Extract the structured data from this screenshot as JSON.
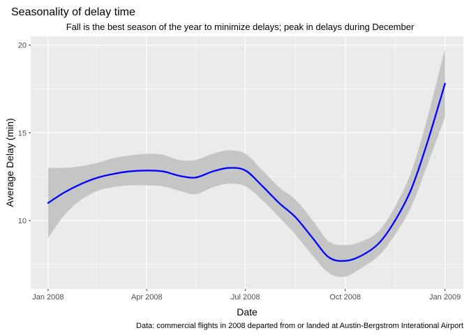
{
  "chart_data": {
    "type": "line",
    "title": "Seasonality of delay time",
    "subtitle": "Fall is the best season of the year to minimize delays; peak in delays during December",
    "caption": "Data: commercial flights in 2008 departed from or landed at Austin-Bergstrom Interational Airport",
    "xlabel": "Date",
    "ylabel": "Average Delay (min)",
    "x_ticks": [
      {
        "date": "2008-01-01",
        "label": "Jan 2008"
      },
      {
        "date": "2008-04-01",
        "label": "Apr 2008"
      },
      {
        "date": "2008-07-01",
        "label": "Jul 2008"
      },
      {
        "date": "2008-10-01",
        "label": "Oct 2008"
      },
      {
        "date": "2009-01-01",
        "label": "Jan 2009"
      }
    ],
    "x_minor_ticks": [
      "2008-02-15",
      "2008-05-16",
      "2008-08-16",
      "2008-11-16"
    ],
    "y_ticks": [
      10,
      15,
      20
    ],
    "xlim": [
      "2007-12-16",
      "2009-01-18"
    ],
    "ylim": [
      6.1,
      20.5
    ],
    "grid": true,
    "colors": {
      "line": "#0000ff",
      "ribbon": "#bebebe",
      "panel": "#ebebeb",
      "grid": "#ffffff"
    },
    "series": [
      {
        "x": [
          "2008-01-01",
          "2008-01-16",
          "2008-02-01",
          "2008-02-16",
          "2008-03-01",
          "2008-03-16",
          "2008-04-01",
          "2008-04-16",
          "2008-05-01",
          "2008-05-16",
          "2008-06-01",
          "2008-06-16",
          "2008-07-01",
          "2008-07-16",
          "2008-08-01",
          "2008-08-16",
          "2008-09-01",
          "2008-09-16",
          "2008-10-01",
          "2008-10-16",
          "2008-11-01",
          "2008-11-16",
          "2008-12-01",
          "2008-12-16",
          "2009-01-01"
        ],
        "y": [
          11.0,
          11.6,
          12.1,
          12.45,
          12.65,
          12.8,
          12.85,
          12.8,
          12.55,
          12.45,
          12.8,
          13.0,
          12.85,
          12.0,
          11.0,
          10.2,
          9.0,
          7.9,
          7.7,
          8.0,
          8.7,
          10.0,
          11.8,
          14.5,
          17.8
        ],
        "lower": [
          9.0,
          10.3,
          11.2,
          11.7,
          11.9,
          12.0,
          12.0,
          11.95,
          11.7,
          11.5,
          11.9,
          12.1,
          11.95,
          11.2,
          10.2,
          9.2,
          8.0,
          7.0,
          6.8,
          7.3,
          8.0,
          9.2,
          10.8,
          13.2,
          15.9
        ],
        "upper": [
          13.0,
          13.0,
          13.1,
          13.3,
          13.55,
          13.7,
          13.8,
          13.75,
          13.45,
          13.45,
          13.8,
          14.0,
          13.8,
          12.9,
          11.9,
          11.2,
          10.0,
          8.8,
          8.6,
          8.8,
          9.4,
          10.8,
          12.8,
          15.9,
          19.8
        ]
      }
    ]
  }
}
